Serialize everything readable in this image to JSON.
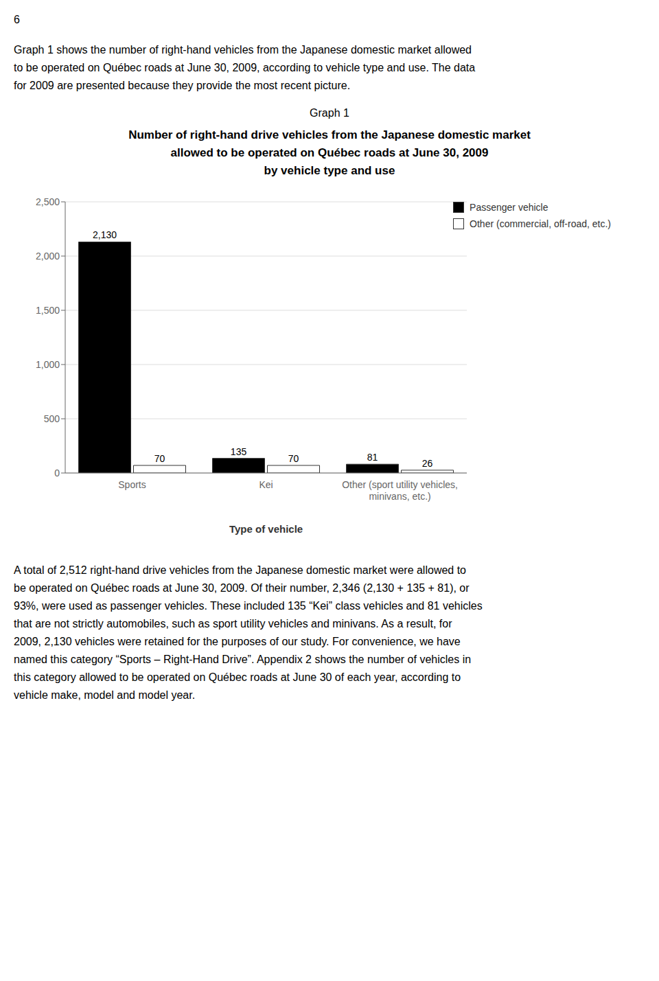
{
  "chart_data": {
    "type": "bar",
    "title": "Number of right-hand drive vehicles from the Japanese domestic market\nallowed to be operated on Québec roads at June 30, 2009\nby vehicle type and use",
    "subtitle": "Graph 1",
    "annotations": [
      [
        "6"
      ],
      [
        "Graph 1 shows the number of right-hand vehicles from the Japanese domestic market allowed",
        "to be operated on Québec roads at June 30, 2009, according to vehicle type and use. The data",
        "for 2009 are presented because they provide the most recent picture."
      ],
      [
        "A total of 2,512 right-hand drive vehicles from the Japanese domestic market were allowed to",
        "be operated on Québec roads at June 30, 2009. Of their number, 2,346 (2,130 + 135 + 81), or",
        "93%, were used as passenger vehicles. These included 135 “Kei” class vehicles and 81 vehicles",
        "that are not strictly automobiles, such as sport utility vehicles and minivans. As a result, for",
        "2009, 2,130 vehicles were retained for the purposes of our study. For convenience, we have",
        "named this category “Sports – Right-Hand Drive”. Appendix 2 shows the number of vehicles in",
        "this category allowed to be operated on Québec roads at June 30 of each year, according to",
        "vehicle make, model and model year."
      ]
    ],
    "categories": [
      "Sports",
      "Kei",
      "Other (sport utility vehicles,\nminivans, etc.)"
    ],
    "series": [
      {
        "name": "Passenger vehicle",
        "color": "#000000",
        "values": [
          2130,
          135,
          81
        ],
        "value_labels": [
          "2,130",
          "135",
          "81"
        ]
      },
      {
        "name": "Other (commercial, off-road, etc.)",
        "color": "#ffffff",
        "values": [
          70,
          70,
          26
        ]
      }
    ],
    "xlabel": "Type of vehicle",
    "ylim": [
      0,
      2500
    ],
    "yticks": [
      0,
      500,
      {
        "value": 1000,
        "label": "1,000"
      },
      {
        "value": 1500,
        "label": "1,500"
      },
      {
        "value": 2000,
        "label": "2,000"
      },
      {
        "value": 2500,
        "label": "2,500"
      }
    ],
    "grid": true,
    "legend": "upper right",
    "data_labels": true
  }
}
